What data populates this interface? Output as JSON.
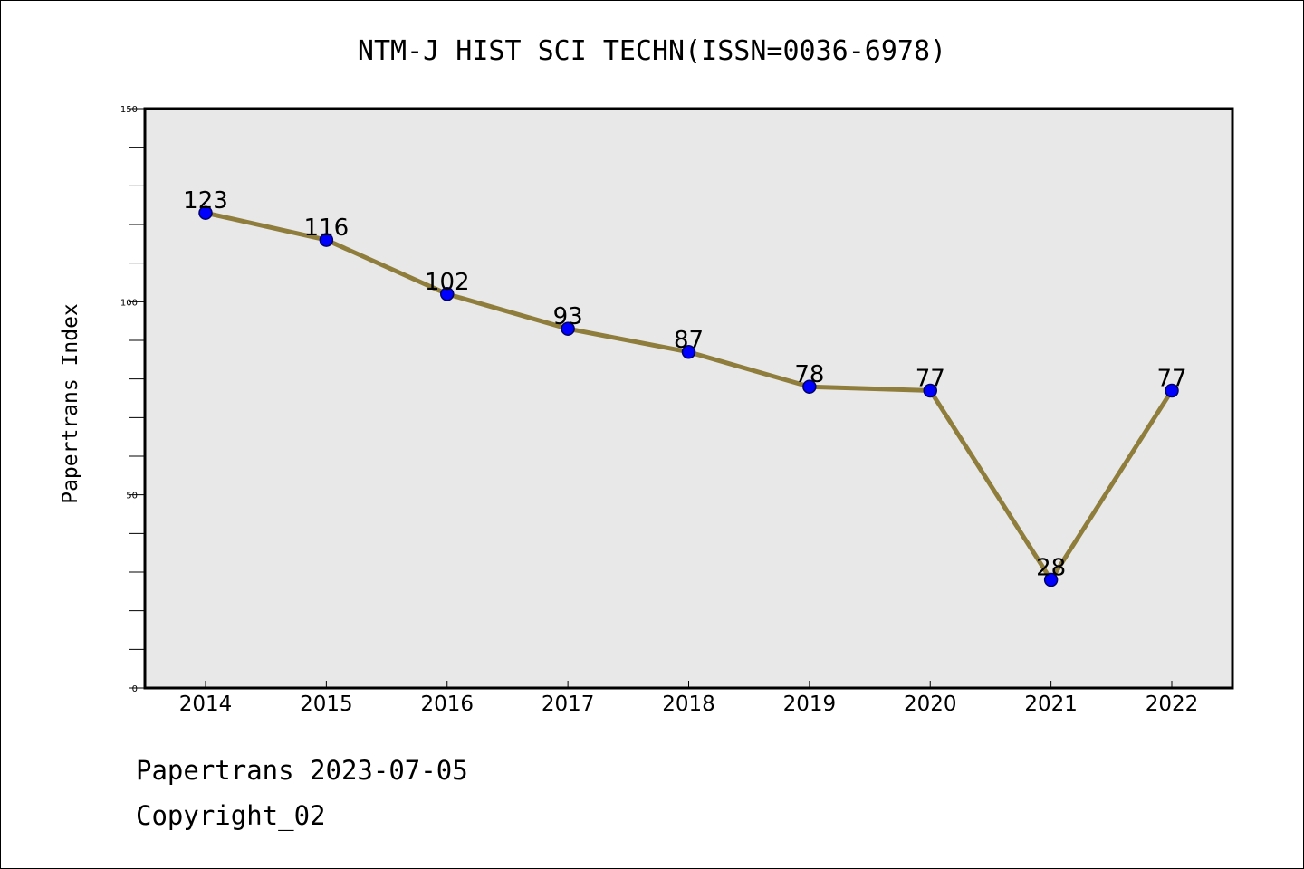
{
  "chart_data": {
    "type": "line",
    "title": "NTM-J HIST SCI TECHN(ISSN=0036-6978)",
    "xlabel": "",
    "ylabel": "Papertrans Index",
    "categories": [
      "2014",
      "2015",
      "2016",
      "2017",
      "2018",
      "2019",
      "2020",
      "2021",
      "2022"
    ],
    "series": [
      {
        "values": [
          123,
          116,
          102,
          93,
          87,
          78,
          77,
          28,
          77
        ]
      }
    ],
    "ylim": [
      0,
      150
    ],
    "yticks": [
      "0",
      "50",
      "100",
      "150"
    ],
    "data_labels": [
      "123",
      "116",
      "102",
      "93",
      "87",
      "78",
      "77",
      "28",
      "77"
    ],
    "grid": false,
    "legend": "none",
    "colors": {
      "line": "#8f7d3c",
      "marker_fill": "#0000ff",
      "marker_edge": "#000066",
      "plot_bg": "#e8e8e8"
    }
  },
  "footer": {
    "date_line": "Papertrans 2023-07-05",
    "copyright_line": "Copyright_02"
  }
}
